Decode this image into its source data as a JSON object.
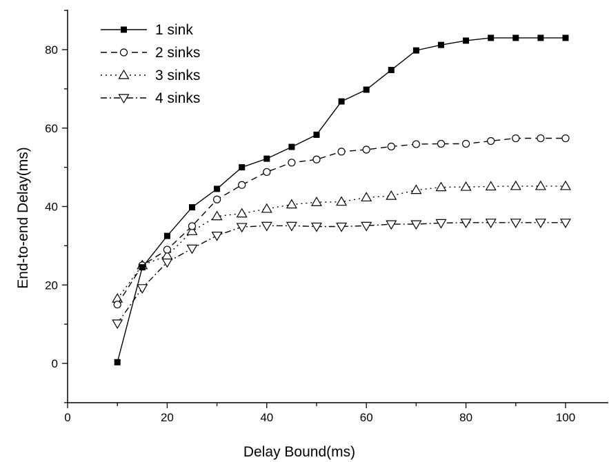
{
  "chart_data": {
    "type": "line",
    "xlabel": "Delay Bound(ms)",
    "ylabel": "End-to-end Delay(ms)",
    "xlim": [
      0,
      110
    ],
    "ylim": [
      -10,
      90
    ],
    "x_ticks": [
      0,
      20,
      40,
      60,
      80,
      100
    ],
    "y_ticks": [
      0,
      20,
      40,
      60,
      80
    ],
    "grid": false,
    "legend_position": "top-left",
    "x": [
      10,
      15,
      20,
      25,
      30,
      35,
      40,
      45,
      50,
      55,
      60,
      65,
      70,
      75,
      80,
      85,
      90,
      95,
      100
    ],
    "series": [
      {
        "name": "1 sink",
        "marker": "filled-square",
        "dash": "solid",
        "values": [
          0.3,
          24.5,
          32.5,
          39.8,
          44.5,
          50,
          52.2,
          55.2,
          58.3,
          66.8,
          69.8,
          74.8,
          79.8,
          81.2,
          82.3,
          83,
          83,
          83,
          83
        ]
      },
      {
        "name": "2 sinks",
        "marker": "open-circle",
        "dash": "dashed",
        "values": [
          15,
          25,
          29,
          35,
          41.8,
          45.5,
          48.8,
          51.2,
          52,
          54,
          54.5,
          55.3,
          55.9,
          56,
          56,
          56.7,
          57.4,
          57.4,
          57.4
        ]
      },
      {
        "name": "3 sinks",
        "marker": "open-triangle-up",
        "dash": "dotted",
        "values": [
          16.5,
          25,
          27.5,
          33.7,
          37.5,
          38.2,
          39.4,
          40.5,
          41.1,
          41.2,
          42.3,
          42.7,
          44.2,
          44.9,
          45,
          45.1,
          45.2,
          45.2,
          45.2
        ]
      },
      {
        "name": "4 sinks",
        "marker": "open-triangle-down",
        "dash": "dash-dot",
        "values": [
          10.2,
          19.2,
          25.8,
          29.3,
          32.6,
          34.8,
          35.1,
          35.1,
          34.9,
          34.9,
          35.1,
          35.5,
          35.5,
          35.8,
          35.9,
          35.9,
          35.9,
          35.9,
          35.9
        ]
      }
    ]
  }
}
